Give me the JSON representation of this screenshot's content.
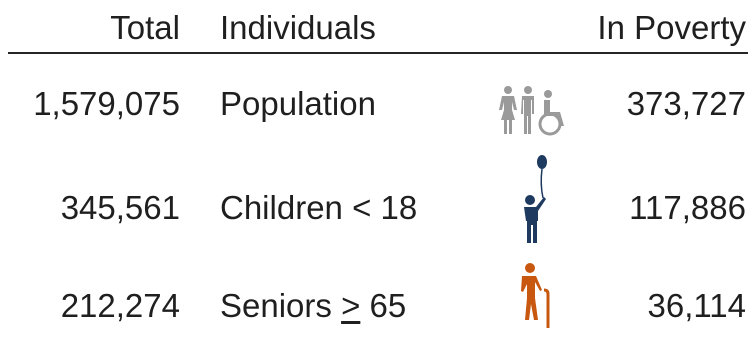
{
  "header": {
    "total": "Total",
    "individuals": "Individuals",
    "in_poverty": "In Poverty"
  },
  "rows": [
    {
      "total": "1,579,075",
      "label": "Population",
      "in_poverty": "373,727",
      "icon": "people-wheelchair-icon",
      "icon_color": "#9a9a9a"
    },
    {
      "total": "345,561",
      "label_prefix": "Children < 18",
      "in_poverty": "117,886",
      "icon": "child-balloon-icon",
      "icon_color": "#1f3a5f"
    },
    {
      "total": "212,274",
      "label_prefix": "Seniors ",
      "label_symbol": ">",
      "label_suffix": " 65",
      "in_poverty": "36,114",
      "icon": "senior-cane-icon",
      "icon_color": "#c8580f"
    }
  ]
}
